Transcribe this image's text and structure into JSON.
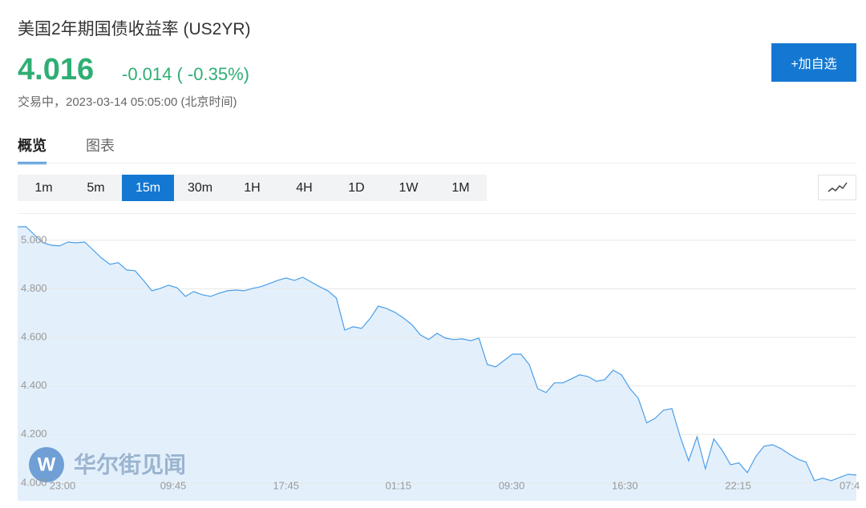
{
  "header": {
    "title": "美国2年期国债收益率 (US2YR)",
    "price": "4.016",
    "change": "-0.014 ( -0.35%)",
    "status": "交易中，2023-03-14 05:05:00 (北京时间)",
    "button": "+加自选"
  },
  "tabs": {
    "items": [
      "概览",
      "图表"
    ],
    "active": 0
  },
  "intervals": {
    "items": [
      "1m",
      "5m",
      "15m",
      "30m",
      "1H",
      "4H",
      "1D",
      "1W",
      "1M"
    ],
    "selected": 2
  },
  "watermark": "华尔街见闻",
  "chart_data": {
    "type": "area",
    "color": "#4a9ee8",
    "fill": "#e3f0fc",
    "grid": true,
    "ylim": [
      3.927,
      5.112
    ],
    "yticks": [
      {
        "value": 4,
        "label": "4.000"
      },
      {
        "value": 4.2,
        "label": "4.200"
      },
      {
        "value": 4.4,
        "label": "4.400"
      },
      {
        "value": 4.6,
        "label": "4.600"
      },
      {
        "value": 4.8,
        "label": "4.800"
      },
      {
        "value": 5,
        "label": "5.000"
      }
    ],
    "xlim": [
      0,
      100
    ],
    "xticks": [
      {
        "value": 5.35,
        "label": "23:00"
      },
      {
        "value": 18.55,
        "label": "09:45"
      },
      {
        "value": 32,
        "label": "17:45"
      },
      {
        "value": 45.4,
        "label": "01:15"
      },
      {
        "value": 58.9,
        "label": "09:30"
      },
      {
        "value": 72.4,
        "label": "16:30"
      },
      {
        "value": 85.9,
        "label": "22:15"
      },
      {
        "value": 99.2,
        "label": "07:4"
      }
    ],
    "values": [
      5.056,
      5.056,
      5.023,
      4.99,
      4.98,
      4.977,
      4.993,
      4.99,
      4.993,
      4.96,
      4.927,
      4.901,
      4.908,
      4.878,
      4.875,
      4.835,
      4.792,
      4.802,
      4.815,
      4.805,
      4.769,
      4.789,
      4.776,
      4.769,
      4.782,
      4.792,
      4.795,
      4.792,
      4.802,
      4.809,
      4.822,
      4.835,
      4.845,
      4.835,
      4.848,
      4.828,
      4.809,
      4.792,
      4.762,
      4.63,
      4.644,
      4.637,
      4.677,
      4.729,
      4.719,
      4.703,
      4.68,
      4.653,
      4.611,
      4.591,
      4.617,
      4.597,
      4.591,
      4.594,
      4.587,
      4.597,
      4.488,
      4.479,
      4.505,
      4.531,
      4.531,
      4.488,
      4.389,
      4.373,
      4.413,
      4.413,
      4.429,
      4.446,
      4.439,
      4.419,
      4.426,
      4.465,
      4.446,
      4.389,
      4.35,
      4.248,
      4.267,
      4.3,
      4.307,
      4.191,
      4.092,
      4.191,
      4.059,
      4.182,
      4.135,
      4.076,
      4.083,
      4.043,
      4.109,
      4.152,
      4.158,
      4.142,
      4.119,
      4.099,
      4.086,
      4.01,
      4.02,
      4.01,
      4.023,
      4.036,
      4.033
    ]
  }
}
